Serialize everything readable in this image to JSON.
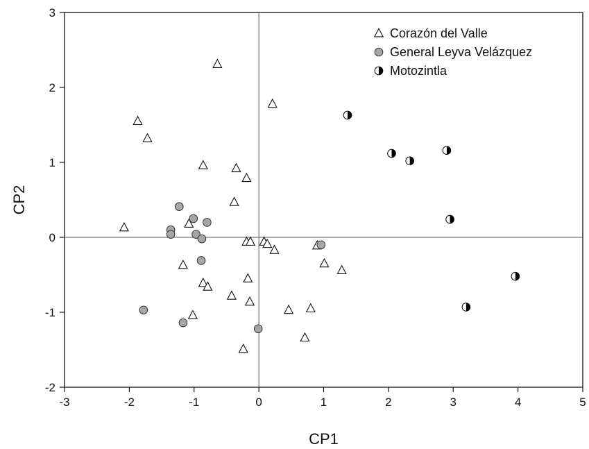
{
  "chart_data": {
    "type": "scatter",
    "title": "",
    "xlabel": "CP1",
    "ylabel": "CP2",
    "xlim": [
      -3,
      5
    ],
    "ylim": [
      -2,
      3
    ],
    "xticks": [
      -3,
      -2,
      -1,
      0,
      1,
      2,
      3,
      4,
      5
    ],
    "yticks": [
      -2,
      -1,
      0,
      1,
      2,
      3
    ],
    "reference_lines": {
      "x": 0,
      "y": 0
    },
    "grid": false,
    "legend_position": "top-right",
    "series": [
      {
        "name": "Corazón del Valle",
        "marker": "open-triangle",
        "color": "#ffffff",
        "stroke": "#111111",
        "points": [
          [
            -0.64,
            2.31
          ],
          [
            -1.87,
            1.55
          ],
          [
            -1.72,
            1.32
          ],
          [
            0.21,
            1.78
          ],
          [
            -0.86,
            0.96
          ],
          [
            -0.35,
            0.92
          ],
          [
            -0.19,
            0.79
          ],
          [
            -0.38,
            0.47
          ],
          [
            -2.08,
            0.13
          ],
          [
            -1.08,
            0.18
          ],
          [
            -0.19,
            -0.06
          ],
          [
            -0.13,
            -0.06
          ],
          [
            0.08,
            -0.06
          ],
          [
            0.13,
            -0.09
          ],
          [
            0.24,
            -0.17
          ],
          [
            0.9,
            -0.11
          ],
          [
            1.01,
            -0.35
          ],
          [
            1.28,
            -0.44
          ],
          [
            -1.17,
            -0.37
          ],
          [
            -0.86,
            -0.61
          ],
          [
            -0.79,
            -0.66
          ],
          [
            -0.17,
            -0.55
          ],
          [
            -0.42,
            -0.78
          ],
          [
            -0.14,
            -0.86
          ],
          [
            -1.02,
            -1.04
          ],
          [
            0.46,
            -0.97
          ],
          [
            0.8,
            -0.95
          ],
          [
            0.71,
            -1.34
          ],
          [
            -0.24,
            -1.49
          ]
        ]
      },
      {
        "name": "General Leyva Velázquez",
        "marker": "gray-circle",
        "color": "#a6a6a6",
        "stroke": "#333333",
        "points": [
          [
            -1.23,
            0.41
          ],
          [
            -1.01,
            0.25
          ],
          [
            -0.8,
            0.2
          ],
          [
            -1.36,
            0.1
          ],
          [
            -1.36,
            0.04
          ],
          [
            -0.97,
            0.04
          ],
          [
            -0.88,
            -0.02
          ],
          [
            -0.89,
            -0.31
          ],
          [
            0.96,
            -0.1
          ],
          [
            -1.78,
            -0.97
          ],
          [
            -1.17,
            -1.14
          ],
          [
            -0.01,
            -1.22
          ]
        ]
      },
      {
        "name": "Motozintla",
        "marker": "half-filled-circle",
        "color": "#000000",
        "stroke": "#000000",
        "points": [
          [
            1.37,
            1.63
          ],
          [
            2.05,
            1.12
          ],
          [
            2.33,
            1.02
          ],
          [
            2.9,
            1.16
          ],
          [
            2.95,
            0.24
          ],
          [
            3.96,
            -0.52
          ],
          [
            3.2,
            -0.93
          ]
        ]
      }
    ]
  }
}
